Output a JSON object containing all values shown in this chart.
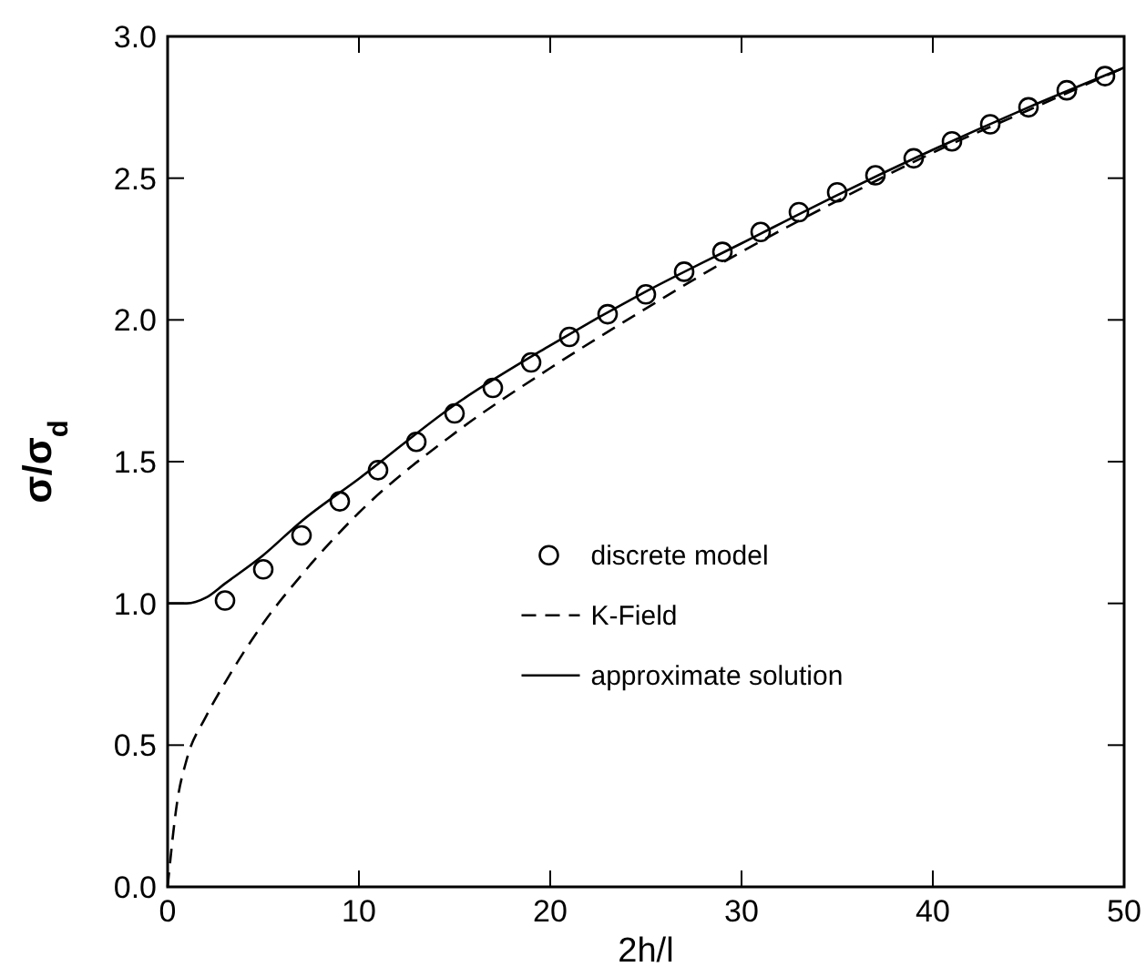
{
  "chart_data": {
    "type": "line",
    "xlabel": "2h/l",
    "ylabel": "σ/σ$_{d}$",
    "xlim": [
      0,
      50
    ],
    "ylim": [
      0,
      3
    ],
    "xticks": [
      0,
      10,
      20,
      30,
      40,
      50
    ],
    "yticks": [
      {
        "value": 0,
        "label": "0.0"
      },
      {
        "value": 0.5,
        "label": "0.5"
      },
      {
        "value": 1,
        "label": "1.0"
      },
      {
        "value": 1.5,
        "label": "1.5"
      },
      {
        "value": 2,
        "label": "2.0"
      },
      {
        "value": 2.5,
        "label": "2.5"
      },
      {
        "value": 3,
        "label": "3.0"
      }
    ],
    "legend": "right",
    "grid": false,
    "series": [
      {
        "name": "discrete model",
        "type": "scatter",
        "marker": "circle",
        "color": "#000000",
        "x": [
          3,
          5,
          7,
          9,
          11,
          13,
          15,
          17,
          19,
          21,
          23,
          25,
          27,
          29,
          31,
          33,
          35,
          37,
          39,
          41,
          43,
          45,
          47,
          49
        ],
        "values": [
          1.01,
          1.12,
          1.24,
          1.36,
          1.47,
          1.57,
          1.67,
          1.76,
          1.85,
          1.94,
          2.02,
          2.09,
          2.17,
          2.24,
          2.31,
          2.38,
          2.45,
          2.51,
          2.57,
          2.63,
          2.69,
          2.75,
          2.81,
          2.86
        ]
      },
      {
        "name": "K-Field",
        "line_style": "dashed",
        "color": "#000000",
        "x": [
          0,
          0.5,
          1,
          2,
          3,
          5,
          7,
          10,
          15,
          20,
          25,
          30,
          35,
          40,
          45,
          50
        ],
        "values": [
          0,
          0.3,
          0.45,
          0.6,
          0.72,
          0.93,
          1.1,
          1.32,
          1.6,
          1.83,
          2.04,
          2.24,
          2.42,
          2.59,
          2.74,
          2.89
        ]
      },
      {
        "name": "approximate solution",
        "line_style": "solid",
        "color": "#000000",
        "x": [
          0,
          1,
          2,
          3,
          5,
          7,
          10,
          15,
          20,
          25,
          30,
          35,
          40,
          45,
          50
        ],
        "values": [
          1,
          1,
          1.02,
          1.07,
          1.17,
          1.29,
          1.44,
          1.7,
          1.91,
          2.1,
          2.27,
          2.44,
          2.6,
          2.75,
          2.89
        ]
      }
    ]
  }
}
